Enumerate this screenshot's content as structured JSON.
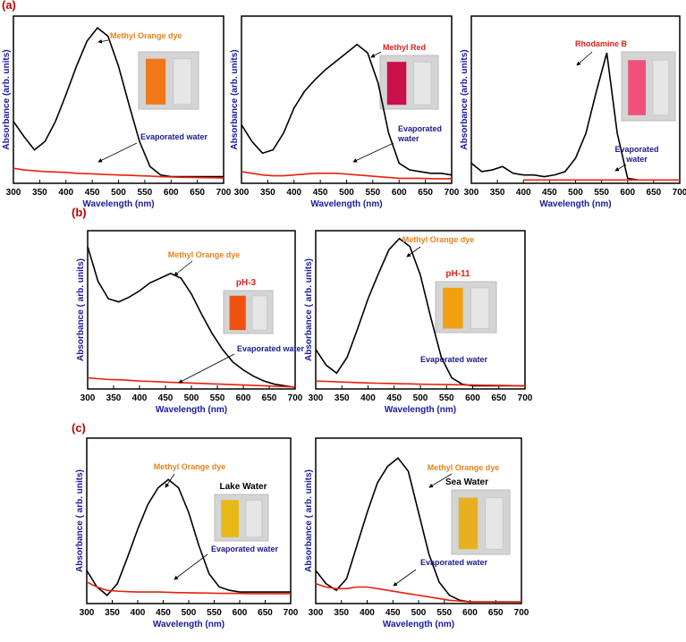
{
  "figure": {
    "panel_labels": [
      "(a)",
      "(b)",
      "(c)"
    ]
  },
  "chart_data": [
    {
      "type": "line",
      "xlabel": "Wavelength (nm)",
      "ylabel": "Absorbance (arb. units)",
      "x": [
        300,
        320,
        340,
        360,
        380,
        400,
        420,
        440,
        460,
        480,
        500,
        520,
        540,
        560,
        580,
        600,
        620,
        640,
        660,
        680,
        700
      ],
      "xlim": [
        300,
        700
      ],
      "xticks": [
        300,
        350,
        400,
        450,
        500,
        550,
        600,
        650,
        700
      ],
      "ylim": [
        0,
        1
      ],
      "series": [
        {
          "name": "Methyl Orange dye",
          "color": "#000000",
          "label_color": "#e8821e",
          "values": [
            0.37,
            0.28,
            0.2,
            0.25,
            0.37,
            0.53,
            0.7,
            0.85,
            0.93,
            0.88,
            0.7,
            0.47,
            0.25,
            0.1,
            0.05,
            0.04,
            0.04,
            0.04,
            0.04,
            0.04,
            0.04
          ]
        },
        {
          "name": "Evaporated water",
          "color": "#e8200c",
          "label_color": "#1a1a8c",
          "values": [
            0.09,
            0.08,
            0.075,
            0.07,
            0.068,
            0.065,
            0.06,
            0.058,
            0.055,
            0.052,
            0.05,
            0.048,
            0.045,
            0.043,
            0.04,
            0.038,
            0.036,
            0.035,
            0.034,
            0.033,
            0.032
          ]
        }
      ],
      "annotations": []
    },
    {
      "type": "line",
      "xlabel": "Wavelength (nm)",
      "ylabel": "Absorbance (arb. units)",
      "x": [
        300,
        320,
        340,
        360,
        380,
        400,
        420,
        440,
        460,
        480,
        500,
        520,
        540,
        560,
        580,
        600,
        620,
        640,
        660,
        680,
        700
      ],
      "xlim": [
        300,
        700
      ],
      "xticks": [
        300,
        350,
        400,
        450,
        500,
        550,
        600,
        650,
        700
      ],
      "ylim": [
        0,
        1
      ],
      "series": [
        {
          "name": "Methyl Red",
          "color": "#000000",
          "label_color": "#e0201a",
          "values": [
            0.35,
            0.25,
            0.18,
            0.2,
            0.3,
            0.45,
            0.55,
            0.62,
            0.68,
            0.73,
            0.78,
            0.83,
            0.78,
            0.6,
            0.3,
            0.12,
            0.08,
            0.07,
            0.06,
            0.06,
            0.05
          ]
        },
        {
          "name": "Evaporated water",
          "color": "#e8200c",
          "label_color": "#1a1a8c",
          "values": [
            0.07,
            0.06,
            0.05,
            0.045,
            0.045,
            0.05,
            0.055,
            0.06,
            0.06,
            0.06,
            0.055,
            0.05,
            0.045,
            0.04,
            0.035,
            0.03,
            0.03,
            0.03,
            0.028,
            0.027,
            0.027
          ]
        }
      ],
      "annotations": []
    },
    {
      "type": "line",
      "xlabel": "Wavelength (nm)",
      "ylabel": "Absorbance (arb. units)",
      "x": [
        300,
        320,
        340,
        360,
        380,
        400,
        420,
        440,
        460,
        480,
        500,
        520,
        540,
        560,
        580,
        600,
        620,
        640,
        660,
        680,
        700
      ],
      "xlim": [
        300,
        700
      ],
      "xticks": [
        300,
        350,
        400,
        450,
        500,
        550,
        600,
        650,
        700
      ],
      "ylim": [
        0,
        1
      ],
      "series": [
        {
          "name": "Rhodamine B",
          "color": "#000000",
          "label_color": "#e0201a",
          "values": [
            0.12,
            0.07,
            0.08,
            0.1,
            0.06,
            0.05,
            0.05,
            0.04,
            0.05,
            0.07,
            0.15,
            0.3,
            0.55,
            0.78,
            0.3,
            0.03,
            0.02,
            0.02,
            0.02,
            0.02,
            0.02
          ]
        },
        {
          "name": "Evaporated water",
          "color": "#e8200c",
          "label_color": "#1a1a8c",
          "values": [
            null,
            null,
            null,
            null,
            null,
            0.02,
            0.02,
            0.02,
            0.02,
            0.02,
            0.02,
            0.02,
            0.02,
            0.02,
            0.02,
            0.02,
            0.02,
            0.02,
            0.02,
            0.02,
            0.02
          ]
        }
      ],
      "annotations": []
    },
    {
      "type": "line",
      "xlabel": "Wavelength (nm)",
      "ylabel": "Absorbance ( arb. units)",
      "x": [
        300,
        320,
        340,
        360,
        380,
        400,
        420,
        440,
        460,
        480,
        500,
        520,
        540,
        560,
        580,
        600,
        620,
        640,
        660,
        680,
        700
      ],
      "xlim": [
        300,
        700
      ],
      "xticks": [
        300,
        350,
        400,
        450,
        500,
        550,
        600,
        650,
        700
      ],
      "ylim": [
        0,
        1
      ],
      "series": [
        {
          "name": "Methyl Orange dye",
          "color": "#000000",
          "label_color": "#e8821e",
          "values": [
            0.9,
            0.68,
            0.57,
            0.55,
            0.58,
            0.62,
            0.67,
            0.7,
            0.73,
            0.7,
            0.6,
            0.47,
            0.35,
            0.25,
            0.17,
            0.12,
            0.08,
            0.05,
            0.03,
            0.02,
            0.01
          ]
        },
        {
          "name": "Evaporated water",
          "color": "#e8200c",
          "label_color": "#1a1a8c",
          "values": [
            0.07,
            0.065,
            0.06,
            0.058,
            0.055,
            0.05,
            0.048,
            0.045,
            0.042,
            0.04,
            0.037,
            0.035,
            0.032,
            0.03,
            0.027,
            0.025,
            0.022,
            0.02,
            0.017,
            0.015,
            0.012
          ]
        }
      ],
      "annotations": [
        {
          "text": "pH-3",
          "color": "#e0201a"
        }
      ]
    },
    {
      "type": "line",
      "xlabel": "Wavelength (nm)",
      "ylabel": "Absorbance ( arb. units)",
      "x": [
        300,
        320,
        340,
        360,
        380,
        400,
        420,
        440,
        460,
        480,
        500,
        520,
        540,
        560,
        580,
        600,
        620,
        640,
        660,
        680,
        700
      ],
      "xlim": [
        300,
        700
      ],
      "xticks": [
        300,
        350,
        400,
        450,
        500,
        550,
        600,
        650,
        700
      ],
      "ylim": [
        0,
        1
      ],
      "series": [
        {
          "name": "Methyl Orange dye",
          "color": "#000000",
          "label_color": "#e8821e",
          "values": [
            0.25,
            0.15,
            0.1,
            0.2,
            0.38,
            0.57,
            0.73,
            0.88,
            0.95,
            0.9,
            0.72,
            0.45,
            0.2,
            0.07,
            0.03,
            0.02,
            0.02,
            0.02,
            0.02,
            0.02,
            0.02
          ]
        },
        {
          "name": "Evaporated water",
          "color": "#e8200c",
          "label_color": "#1a1a8c",
          "values": [
            0.05,
            0.048,
            0.045,
            0.043,
            0.04,
            0.038,
            0.036,
            0.035,
            0.033,
            0.032,
            0.03,
            0.029,
            0.028,
            0.027,
            0.026,
            0.025,
            0.024,
            0.023,
            0.022,
            0.021,
            0.02
          ]
        }
      ],
      "annotations": [
        {
          "text": "pH-11",
          "color": "#e0201a"
        }
      ]
    },
    {
      "type": "line",
      "xlabel": "Wavelength (nm)",
      "ylabel": "Absorbance ( arb. units)",
      "x": [
        300,
        320,
        340,
        360,
        380,
        400,
        420,
        440,
        460,
        480,
        500,
        520,
        540,
        560,
        580,
        600,
        620,
        640,
        660,
        680,
        700
      ],
      "xlim": [
        300,
        700
      ],
      "xticks": [
        300,
        350,
        400,
        450,
        500,
        550,
        600,
        650,
        700
      ],
      "ylim": [
        0,
        1
      ],
      "series": [
        {
          "name": "Methyl Orange dye",
          "color": "#000000",
          "label_color": "#e8821e",
          "values": [
            0.2,
            0.1,
            0.05,
            0.12,
            0.28,
            0.45,
            0.6,
            0.7,
            0.75,
            0.7,
            0.55,
            0.35,
            0.18,
            0.1,
            0.08,
            0.07,
            0.07,
            0.07,
            0.07,
            0.07,
            0.07
          ]
        },
        {
          "name": "Evaporated water",
          "color": "#e8200c",
          "label_color": "#1a1a8c",
          "values": [
            0.13,
            0.1,
            0.08,
            0.075,
            0.072,
            0.07,
            0.07,
            0.07,
            0.068,
            0.066,
            0.065,
            0.064,
            0.063,
            0.062,
            0.062,
            0.061,
            0.06,
            0.06,
            0.06,
            0.06,
            0.06
          ]
        }
      ],
      "annotations": [
        {
          "text": "Lake Water",
          "color": "#000000"
        }
      ]
    },
    {
      "type": "line",
      "xlabel": "Wavelength (nm)",
      "ylabel": "Absorbance ( arb. units)",
      "x": [
        300,
        320,
        340,
        360,
        380,
        400,
        420,
        440,
        460,
        480,
        500,
        520,
        540,
        560,
        580,
        600,
        620,
        640,
        660,
        680,
        700
      ],
      "xlim": [
        300,
        700
      ],
      "xticks": [
        300,
        350,
        400,
        450,
        500,
        550,
        600,
        650,
        700
      ],
      "ylim": [
        0,
        1
      ],
      "series": [
        {
          "name": "Methyl Orange dye",
          "color": "#000000",
          "label_color": "#e8821e",
          "values": [
            0.2,
            0.12,
            0.08,
            0.15,
            0.35,
            0.55,
            0.73,
            0.83,
            0.88,
            0.8,
            0.55,
            0.3,
            0.13,
            0.05,
            0.02,
            0.01,
            0.01,
            0.01,
            0.01,
            0.01,
            0.01
          ]
        },
        {
          "name": "Evaporated water",
          "color": "#e8200c",
          "label_color": "#1a1a8c",
          "values": [
            0.12,
            0.1,
            0.09,
            0.09,
            0.1,
            0.1,
            0.09,
            0.08,
            0.07,
            0.06,
            0.05,
            0.04,
            0.03,
            0.02,
            0.015,
            0.01,
            0.01,
            0.01,
            0.01,
            0.01,
            0.01
          ]
        }
      ],
      "annotations": [
        {
          "text": "Sea Water",
          "color": "#000000"
        }
      ]
    }
  ]
}
